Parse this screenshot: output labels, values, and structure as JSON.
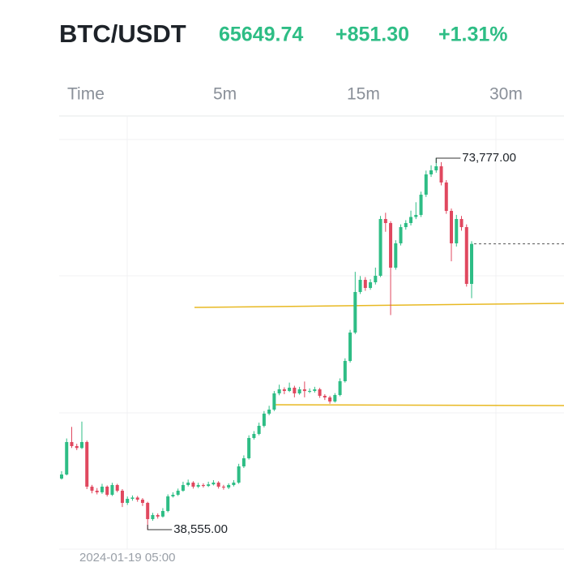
{
  "header": {
    "title": "BTC/USDT",
    "price": "65649.74",
    "change": "+851.30",
    "change_percent": "+1.31%"
  },
  "tabs": [
    "Time",
    "5m",
    "15m",
    "30m"
  ],
  "chart_data": {
    "type": "candlestick",
    "categories": [
      null,
      null,
      null,
      null,
      null,
      null,
      null,
      null,
      null,
      null,
      null,
      null,
      null,
      "2024-01-19 05:00",
      null,
      null,
      null,
      null,
      null,
      null,
      null,
      null,
      null,
      null,
      null,
      null,
      null,
      null,
      null,
      null,
      null,
      null,
      null,
      null,
      null,
      null,
      null,
      null,
      null,
      null,
      null,
      null,
      null,
      null,
      null,
      null,
      null,
      null,
      null,
      null,
      null,
      null,
      null,
      null,
      null,
      null,
      null,
      null,
      null,
      null,
      null,
      null,
      null,
      null,
      null,
      null,
      null,
      null,
      null,
      null,
      null,
      null,
      null,
      null,
      null,
      null,
      null,
      null,
      null,
      null,
      null,
      null
    ],
    "open": [
      43400,
      43786,
      46862,
      46477,
      46300,
      46862,
      42632,
      42248,
      42100,
      42632,
      41863,
      42786,
      42248,
      41094,
      41479,
      41600,
      41400,
      41094,
      39556,
      39941,
      39800,
      40325,
      41710,
      41863,
      42248,
      42786,
      43017,
      42632,
      42786,
      42700,
      42850,
      43017,
      42632,
      42550,
      42786,
      43017,
      44555,
      45324,
      47246,
      47631,
      48400,
      49553,
      49938,
      51476,
      51860,
      51707,
      52014,
      51476,
      51860,
      51700,
      51707,
      51860,
      51245,
      51091,
      50707,
      51322,
      52629,
      54552,
      57243,
      61088,
      62242,
      61473,
      62011,
      62626,
      68009,
      67625,
      63395,
      65702,
      67240,
      67625,
      68200,
      68394,
      70316,
      72239,
      72623,
      73008,
      71470,
      68778,
      65702,
      68009,
      67240,
      61857
    ],
    "high": [
      44100,
      47200,
      48300,
      46700,
      48800,
      47000,
      42800,
      42500,
      42900,
      42750,
      43000,
      42900,
      42400,
      41700,
      41800,
      41750,
      41550,
      41200,
      40150,
      40100,
      40600,
      41900,
      42100,
      42450,
      43100,
      43300,
      43150,
      43000,
      42950,
      43100,
      43250,
      43150,
      42800,
      42950,
      43250,
      44800,
      45600,
      47500,
      47900,
      48700,
      49800,
      50300,
      51700,
      52300,
      52050,
      52500,
      52200,
      52100,
      52600,
      51950,
      52100,
      52000,
      51400,
      51250,
      51500,
      52900,
      54800,
      57500,
      63000,
      62600,
      62500,
      62300,
      63400,
      68300,
      68600,
      67800,
      66000,
      67500,
      67900,
      68800,
      69600,
      70600,
      72600,
      73100,
      73777,
      73400,
      71700,
      69000,
      68400,
      68300,
      67500,
      65900
    ],
    "low": [
      43300,
      43700,
      46300,
      46100,
      46200,
      42400,
      42000,
      41900,
      41950,
      41700,
      41750,
      42100,
      40700,
      40900,
      41300,
      41200,
      40800,
      38555,
      39400,
      39600,
      39700,
      40200,
      41600,
      41750,
      42150,
      42650,
      42450,
      42500,
      42550,
      42600,
      42750,
      42450,
      42350,
      42400,
      42650,
      42900,
      44400,
      45200,
      47100,
      47500,
      48250,
      49400,
      49800,
      51300,
      51400,
      51600,
      51100,
      51350,
      51100,
      51500,
      51550,
      51050,
      50850,
      50500,
      50600,
      51200,
      52500,
      54400,
      57100,
      60900,
      61200,
      61300,
      61800,
      62500,
      66800,
      58900,
      63200,
      65500,
      67000,
      67400,
      68000,
      68200,
      70100,
      72000,
      72400,
      71200,
      68500,
      64000,
      65400,
      66900,
      61600,
      60500
    ],
    "close": [
      43786,
      46862,
      46477,
      46300,
      46862,
      42632,
      42248,
      42100,
      42632,
      41863,
      42786,
      42248,
      41094,
      41479,
      41600,
      41400,
      41094,
      39556,
      39941,
      39800,
      40325,
      41710,
      41863,
      42248,
      42786,
      43017,
      42632,
      42786,
      42700,
      42850,
      43017,
      42632,
      42550,
      42786,
      43017,
      44555,
      45324,
      47246,
      47631,
      48400,
      49553,
      49938,
      51476,
      51860,
      51707,
      52014,
      51476,
      51860,
      51700,
      51707,
      51860,
      51245,
      51091,
      50707,
      51322,
      52629,
      54552,
      57243,
      61088,
      62242,
      61473,
      62011,
      62626,
      68009,
      67625,
      63395,
      65702,
      67240,
      67625,
      68200,
      68394,
      70316,
      72239,
      72623,
      73008,
      71470,
      68778,
      65702,
      68009,
      67240,
      61857,
      65649.74
    ],
    "up_color": "#2ebd85",
    "down_color": "#e0485f",
    "max_label": {
      "value": 73777,
      "label": "73,777.00"
    },
    "min_label": {
      "value": 38555,
      "label": "38,555.00"
    }
  }
}
